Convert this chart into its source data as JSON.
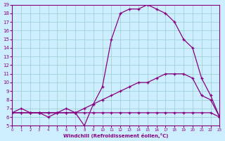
{
  "xlabel": "Windchill (Refroidissement éolien,°C)",
  "bg_color": "#cceeff",
  "line_color": "#880080",
  "grid_color": "#99cccc",
  "xmin": 0,
  "xmax": 23,
  "ymin": 5,
  "ymax": 19,
  "curve_flat_x": [
    0,
    1,
    2,
    3,
    4,
    5,
    6,
    7,
    8,
    9,
    10,
    11,
    12,
    13,
    14,
    15,
    16,
    17,
    18,
    19,
    20,
    21,
    22,
    23
  ],
  "curve_flat_y": [
    6.5,
    6.5,
    6.5,
    6.5,
    6.5,
    6.5,
    6.5,
    6.5,
    6.5,
    6.5,
    6.5,
    6.5,
    6.5,
    6.5,
    6.5,
    6.5,
    6.5,
    6.5,
    6.5,
    6.5,
    6.5,
    6.5,
    6.5,
    6.0
  ],
  "curve_mid_x": [
    0,
    1,
    2,
    3,
    4,
    5,
    6,
    7,
    8,
    9,
    10,
    11,
    12,
    13,
    14,
    15,
    16,
    17,
    18,
    19,
    20,
    21,
    22,
    23
  ],
  "curve_mid_y": [
    6.5,
    6.5,
    6.5,
    6.5,
    6.5,
    6.5,
    6.5,
    6.5,
    7.0,
    7.5,
    8.0,
    8.5,
    9.0,
    9.5,
    10.0,
    10.0,
    10.5,
    11.0,
    11.0,
    11.0,
    10.5,
    8.5,
    8.0,
    6.0
  ],
  "curve_main_x": [
    0,
    1,
    2,
    3,
    4,
    5,
    6,
    7,
    8,
    9,
    10,
    11,
    12,
    13,
    14,
    15,
    16,
    17,
    18,
    19,
    20,
    21,
    22,
    23
  ],
  "curve_main_y": [
    6.5,
    7.0,
    6.5,
    6.5,
    6.0,
    6.5,
    7.0,
    6.5,
    5.0,
    7.5,
    9.5,
    15.0,
    18.0,
    18.5,
    18.5,
    19.0,
    18.5,
    18.0,
    17.0,
    15.0,
    14.0,
    10.5,
    8.5,
    6.0
  ]
}
